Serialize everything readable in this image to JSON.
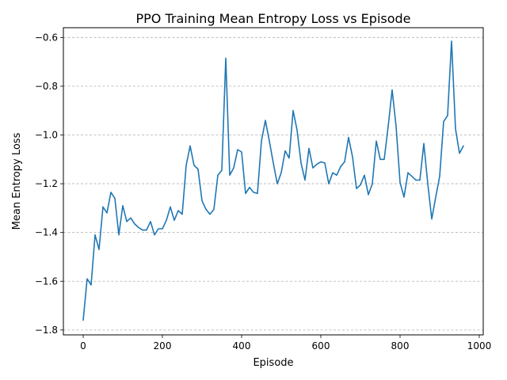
{
  "chart_data": {
    "type": "line",
    "title": "PPO Training Mean Entropy Loss vs Episode",
    "xlabel": "Episode",
    "ylabel": "Mean Entropy Loss",
    "xlim": [
      -50,
      1010
    ],
    "ylim": [
      -1.82,
      -0.56
    ],
    "xticks": [
      0,
      200,
      400,
      600,
      800,
      1000
    ],
    "xtick_labels": [
      "0",
      "200",
      "400",
      "600",
      "800",
      "1000"
    ],
    "yticks": [
      -1.8,
      -1.6,
      -1.4,
      -1.2,
      -1.0,
      -0.8,
      -0.6
    ],
    "ytick_labels": [
      "−1.8",
      "−1.6",
      "−1.4",
      "−1.2",
      "−1.0",
      "−0.8",
      "−0.6"
    ],
    "grid": "y-dashed",
    "series": [
      {
        "color": "#1f77b4",
        "x": [
          0,
          10,
          20,
          30,
          40,
          50,
          60,
          70,
          80,
          90,
          100,
          110,
          120,
          130,
          140,
          150,
          160,
          170,
          180,
          190,
          200,
          210,
          220,
          230,
          240,
          250,
          260,
          270,
          280,
          290,
          300,
          310,
          320,
          330,
          340,
          350,
          360,
          370,
          380,
          390,
          400,
          410,
          420,
          430,
          440,
          450,
          460,
          470,
          480,
          490,
          500,
          510,
          520,
          530,
          540,
          550,
          560,
          570,
          580,
          590,
          600,
          610,
          620,
          630,
          640,
          650,
          660,
          670,
          680,
          690,
          700,
          710,
          720,
          730,
          740,
          750,
          760,
          770,
          780,
          790,
          800,
          810,
          820,
          830,
          840,
          850,
          860,
          870,
          880,
          890,
          900,
          910,
          920,
          930,
          940,
          950,
          960
        ],
        "values": [
          -1.76,
          -1.59,
          -1.615,
          -1.41,
          -1.47,
          -1.295,
          -1.32,
          -1.235,
          -1.26,
          -1.41,
          -1.29,
          -1.355,
          -1.34,
          -1.365,
          -1.38,
          -1.39,
          -1.39,
          -1.355,
          -1.41,
          -1.385,
          -1.385,
          -1.35,
          -1.295,
          -1.35,
          -1.31,
          -1.325,
          -1.125,
          -1.045,
          -1.125,
          -1.14,
          -1.27,
          -1.305,
          -1.325,
          -1.305,
          -1.165,
          -1.145,
          -0.685,
          -1.165,
          -1.135,
          -1.06,
          -1.07,
          -1.24,
          -1.215,
          -1.235,
          -1.24,
          -1.025,
          -0.94,
          -1.025,
          -1.115,
          -1.2,
          -1.155,
          -1.065,
          -1.095,
          -0.9,
          -0.98,
          -1.115,
          -1.185,
          -1.055,
          -1.135,
          -1.12,
          -1.11,
          -1.115,
          -1.2,
          -1.155,
          -1.165,
          -1.13,
          -1.11,
          -1.01,
          -1.09,
          -1.22,
          -1.205,
          -1.165,
          -1.245,
          -1.2,
          -1.025,
          -1.1,
          -1.1,
          -0.965,
          -0.815,
          -0.965,
          -1.195,
          -1.255,
          -1.155,
          -1.17,
          -1.185,
          -1.185,
          -1.035,
          -1.2,
          -1.345,
          -1.255,
          -1.17,
          -0.945,
          -0.92,
          -0.615,
          -0.975,
          -1.075,
          -1.045
        ]
      }
    ]
  }
}
